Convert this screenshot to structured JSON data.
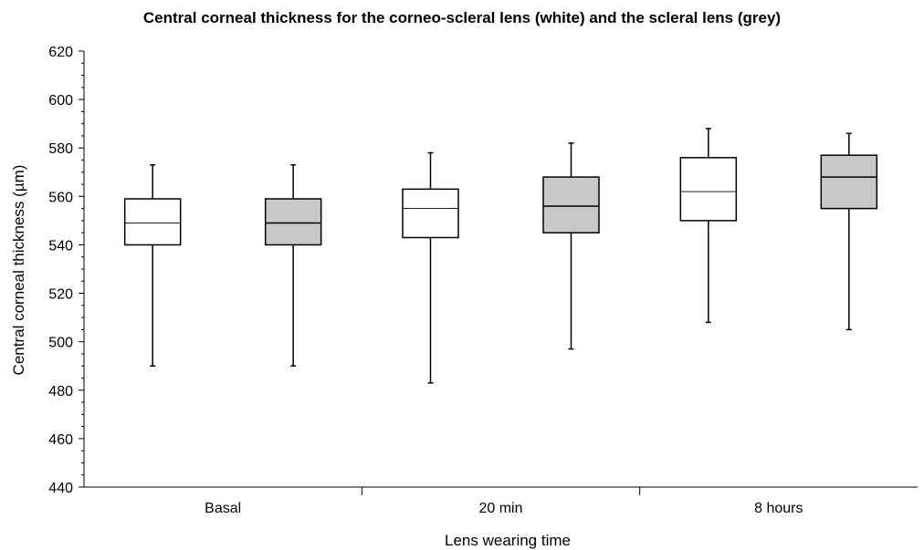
{
  "chart_data": {
    "type": "box",
    "title": "Central corneal thickness for the corneo-scleral lens (white) and the scleral lens (grey)",
    "xlabel": "Lens wearing time",
    "ylabel": "Central corneal thickness (µm)",
    "ylim": [
      440,
      620
    ],
    "yticks": [
      440,
      460,
      480,
      500,
      520,
      540,
      560,
      580,
      600,
      620
    ],
    "categories": [
      "Basal",
      "20 min",
      "8 hours"
    ],
    "grid": false,
    "series": [
      {
        "fill": "#ffffff",
        "boxes": [
          {
            "min": 490,
            "q1": 540,
            "median": 549,
            "q3": 559,
            "max": 573
          },
          {
            "min": 483,
            "q1": 543,
            "median": 555,
            "q3": 563,
            "max": 578
          },
          {
            "min": 508,
            "q1": 550,
            "median": 562,
            "q3": 576,
            "max": 588
          }
        ]
      },
      {
        "fill": "#c8c8c8",
        "boxes": [
          {
            "min": 490,
            "q1": 540,
            "median": 549,
            "q3": 559,
            "max": 573
          },
          {
            "min": 497,
            "q1": 545,
            "median": 556,
            "q3": 568,
            "max": 582
          },
          {
            "min": 505,
            "q1": 555,
            "median": 568,
            "q3": 577,
            "max": 586
          }
        ]
      }
    ]
  }
}
